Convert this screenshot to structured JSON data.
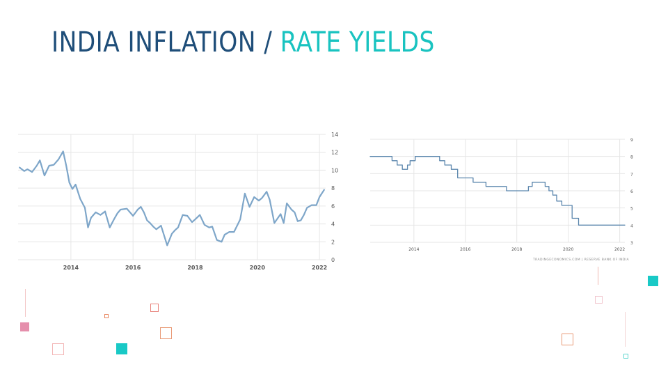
{
  "header": {
    "title_part1": "INDIA INFLATION",
    "separator": "/",
    "title_part2": "RATE YIELDS"
  },
  "colors": {
    "title_dark": "#1f4e79",
    "title_accent": "#19c3c0",
    "line": "#7ea6c9",
    "line_rate": "#5b86ad",
    "grid": "#e6e6e6"
  },
  "chart_data": [
    {
      "type": "line",
      "title": "",
      "xlabel": "",
      "ylabel": "",
      "xlim": [
        2012.3,
        2022.2
      ],
      "ylim": [
        0,
        14
      ],
      "y_ticks": [
        0,
        2,
        4,
        6,
        8,
        10,
        12,
        14
      ],
      "x_ticks": [
        2014,
        2016,
        2018,
        2020,
        2022
      ],
      "grid": true,
      "y_axis_side": "right",
      "series": [
        {
          "x": [
            2012.35,
            2012.5,
            2012.6,
            2012.75,
            2012.9,
            2013.0,
            2013.15,
            2013.3,
            2013.45,
            2013.6,
            2013.75,
            2013.85,
            2013.95,
            2014.05,
            2014.15,
            2014.3,
            2014.45,
            2014.55,
            2014.65,
            2014.8,
            2014.95,
            2015.1,
            2015.25,
            2015.4,
            2015.5,
            2015.6,
            2015.8,
            2016.0,
            2016.15,
            2016.25,
            2016.35,
            2016.45,
            2016.55,
            2016.65,
            2016.75,
            2016.9,
            2017.1,
            2017.25,
            2017.35,
            2017.45,
            2017.6,
            2017.75,
            2017.9,
            2018.0,
            2018.15,
            2018.3,
            2018.45,
            2018.55,
            2018.7,
            2018.85,
            2018.95,
            2019.1,
            2019.25,
            2019.45,
            2019.6,
            2019.75,
            2019.9,
            2020.05,
            2020.15,
            2020.3,
            2020.4,
            2020.55,
            2020.75,
            2020.85,
            2020.95,
            2021.1,
            2021.2,
            2021.3,
            2021.4,
            2021.5,
            2021.6,
            2021.75,
            2021.9,
            2022.0,
            2022.15
          ],
          "y": [
            10.3,
            9.9,
            10.1,
            9.8,
            10.5,
            11.1,
            9.4,
            10.5,
            10.6,
            11.2,
            12.1,
            10.5,
            8.6,
            7.9,
            8.4,
            6.8,
            5.8,
            3.6,
            4.7,
            5.3,
            5.0,
            5.4,
            3.6,
            4.6,
            5.2,
            5.6,
            5.7,
            4.9,
            5.6,
            5.9,
            5.3,
            4.4,
            4.1,
            3.7,
            3.4,
            3.8,
            1.6,
            2.9,
            3.3,
            3.6,
            5.0,
            4.9,
            4.2,
            4.5,
            5.0,
            3.9,
            3.6,
            3.7,
            2.2,
            2.0,
            2.8,
            3.1,
            3.1,
            4.5,
            7.4,
            5.9,
            7.0,
            6.6,
            6.9,
            7.6,
            6.7,
            4.1,
            5.1,
            4.1,
            6.3,
            5.6,
            5.3,
            4.3,
            4.4,
            5.0,
            5.8,
            6.1,
            6.1,
            7.0,
            7.8
          ]
        }
      ]
    },
    {
      "type": "line",
      "title": "",
      "xlabel": "",
      "ylabel": "",
      "xlim": [
        2012.3,
        2022.2
      ],
      "ylim": [
        3,
        9
      ],
      "y_ticks": [
        3,
        4,
        5,
        6,
        7,
        8,
        9
      ],
      "x_ticks": [
        2014,
        2016,
        2018,
        2020,
        2022
      ],
      "grid": true,
      "y_axis_side": "right",
      "step": true,
      "source": "TRADINGECONOMICS.COM | RESERVE BANK OF INDIA",
      "series": [
        {
          "x": [
            2012.3,
            2013.05,
            2013.15,
            2013.35,
            2013.55,
            2013.75,
            2013.85,
            2014.05,
            2015.0,
            2015.2,
            2015.45,
            2015.7,
            2016.3,
            2016.8,
            2017.6,
            2018.45,
            2018.6,
            2019.1,
            2019.25,
            2019.4,
            2019.55,
            2019.75,
            2020.15,
            2020.3,
            2020.4,
            2022.2
          ],
          "y": [
            8.0,
            8.0,
            7.75,
            7.5,
            7.25,
            7.5,
            7.75,
            8.0,
            7.75,
            7.5,
            7.25,
            6.75,
            6.5,
            6.25,
            6.0,
            6.25,
            6.5,
            6.25,
            6.0,
            5.75,
            5.4,
            5.15,
            4.4,
            4.4,
            4.0,
            4.0
          ]
        }
      ]
    }
  ]
}
